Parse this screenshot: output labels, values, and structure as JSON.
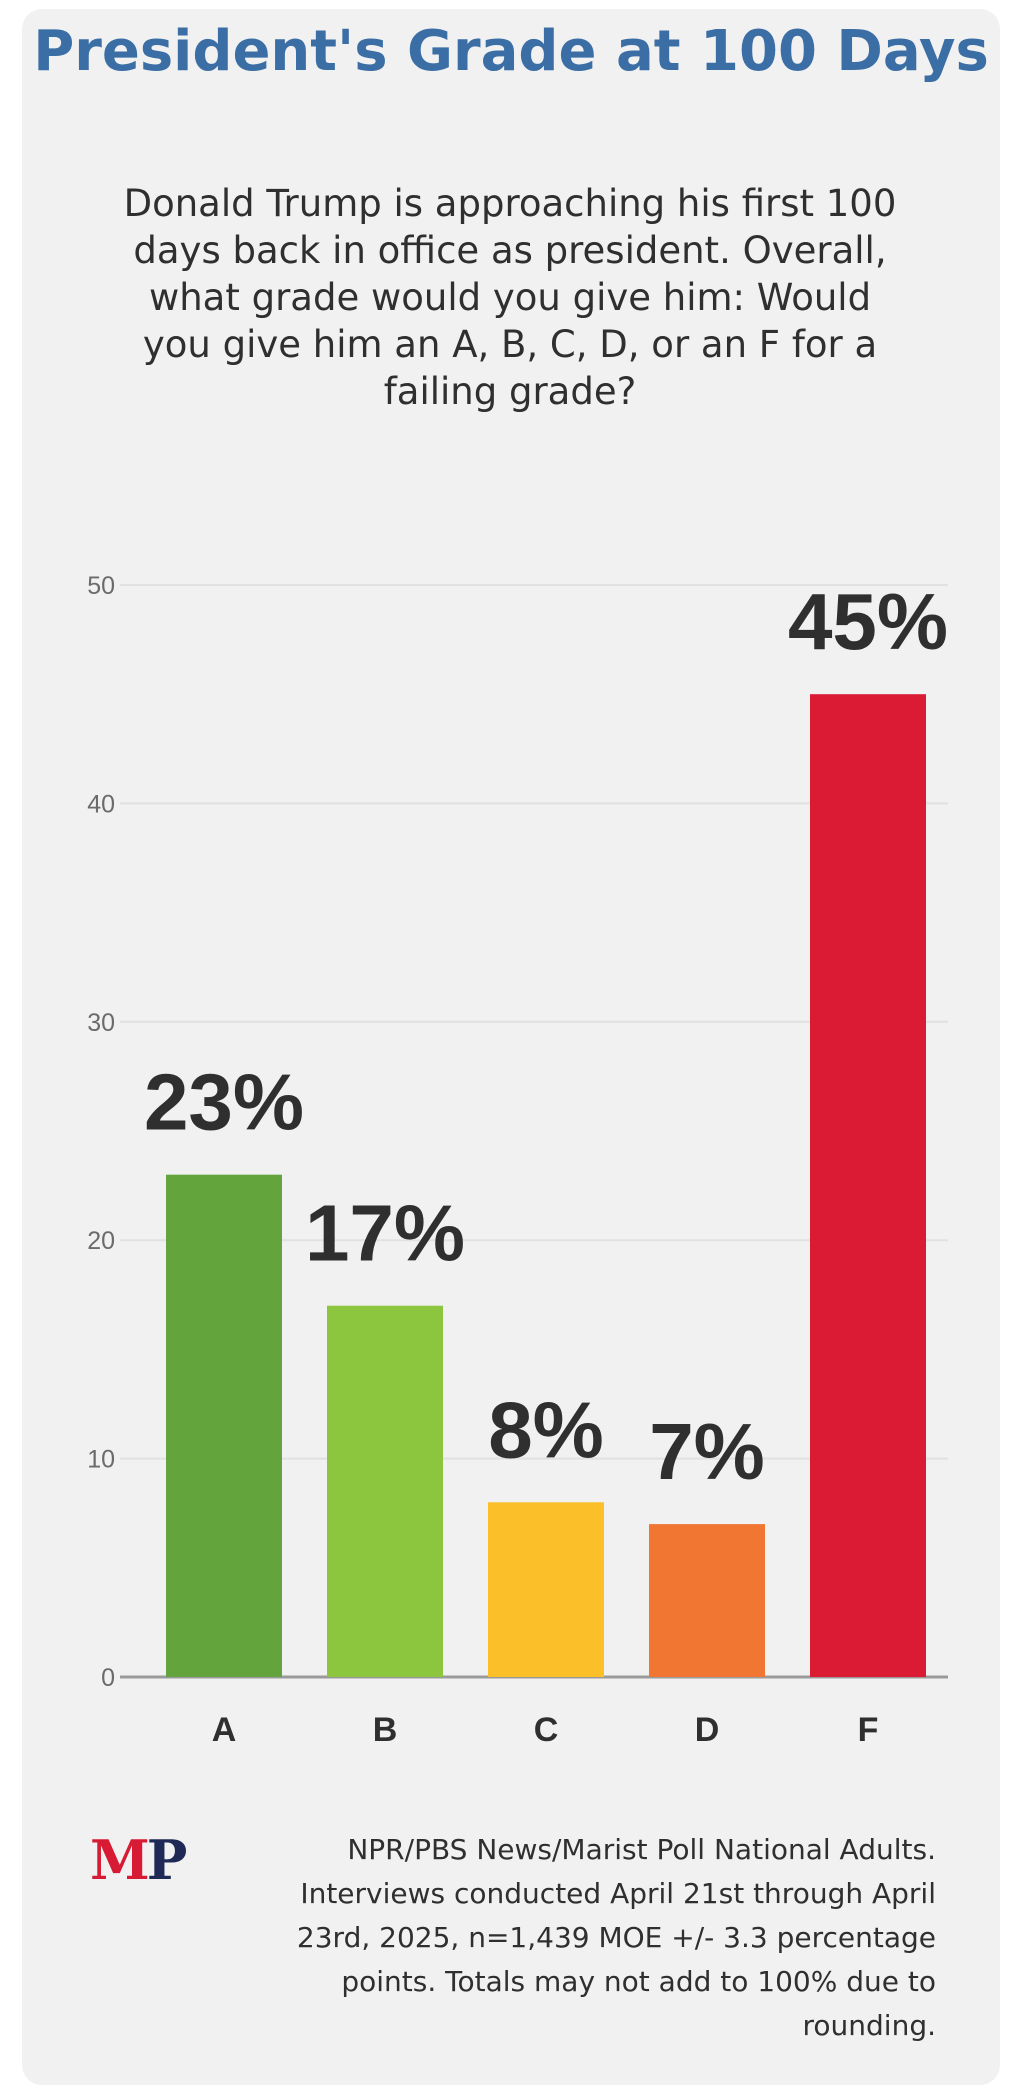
{
  "chart_data": {
    "type": "bar",
    "title": "President's Grade at 100 Days",
    "subtitle": "Donald Trump is approaching his first 100 days back in office as president. Overall, what grade would you give him: Would you give him an A, B, C, D, or an F for a failing grade?",
    "categories": [
      "A",
      "B",
      "C",
      "D",
      "F"
    ],
    "values": [
      23,
      17,
      8,
      7,
      45
    ],
    "value_labels": [
      "23%",
      "17%",
      "8%",
      "7%",
      "45%"
    ],
    "colors": [
      "#63a53c",
      "#8cc63e",
      "#fbbf2a",
      "#f07631",
      "#db1a34"
    ],
    "yticks": [
      0,
      10,
      20,
      30,
      40,
      50
    ],
    "ylim": [
      0,
      50
    ],
    "xlabel": "",
    "ylabel": "",
    "grid": true
  },
  "footer": {
    "logo_m": "M",
    "logo_p": "P",
    "source": "NPR/PBS News/Marist Poll National Adults. Interviews conducted April 21st through April 23rd, 2025, n=1,439 MOE +/- 3.3 percentage points. Totals may not add to 100% due to rounding."
  }
}
